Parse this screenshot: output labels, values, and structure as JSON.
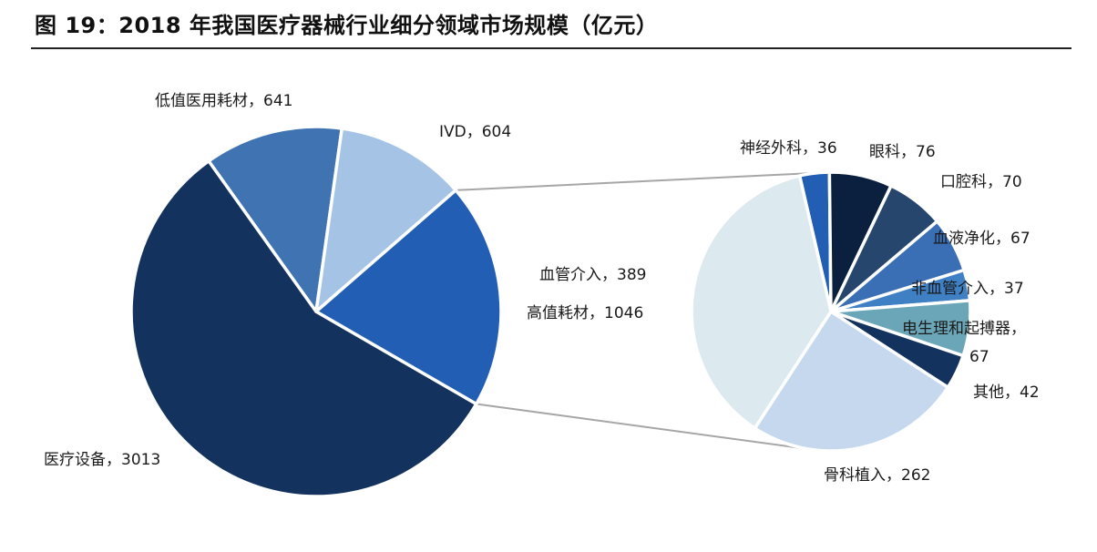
{
  "title": "图 19：2018 年我国医疗器械行业细分领域市场规模（亿元）",
  "chart_data": [
    {
      "type": "pie",
      "name": "main",
      "slices": [
        {
          "label": "医疗设备",
          "value": 3013,
          "display": "医疗设备，3013",
          "color": "#13335e"
        },
        {
          "label": "低值医用耗材",
          "value": 641,
          "display": "低值医用耗材，641",
          "color": "#3f73b2"
        },
        {
          "label": "IVD",
          "value": 604,
          "display": "IVD，604",
          "color": "#a5c4e5"
        },
        {
          "label": "高值耗材",
          "value": 1046,
          "display": "高值耗材，1046",
          "color": "#215eb4"
        }
      ]
    },
    {
      "type": "pie",
      "name": "high-value-consumables-breakdown",
      "slices": [
        {
          "label": "神经外科",
          "value": 36,
          "display": "神经外科，36",
          "color": "#215eb4"
        },
        {
          "label": "眼科",
          "value": 76,
          "display": "眼科，76",
          "color": "#0b1f3f"
        },
        {
          "label": "口腔科",
          "value": 70,
          "display": "口腔科，70",
          "color": "#26466e"
        },
        {
          "label": "血液净化",
          "value": 67,
          "display": "血液净化，67",
          "color": "#3a6eb5"
        },
        {
          "label": "非血管介入",
          "value": 37,
          "display": "非血管介入，37",
          "color": "#3f80c4"
        },
        {
          "label": "电生理和起搏器",
          "value": 67,
          "display_line1": "电生理和起搏器，",
          "display_line2": "67",
          "color": "#6aa6b8"
        },
        {
          "label": "其他",
          "value": 42,
          "display": "其他，42",
          "color": "#13335e"
        },
        {
          "label": "骨科植入",
          "value": 262,
          "display": "骨科植入，262",
          "color": "#c5d8ee"
        },
        {
          "label": "血管介入",
          "value": 389,
          "display": "血管介入，389",
          "color": "#dceaf0"
        }
      ]
    }
  ]
}
